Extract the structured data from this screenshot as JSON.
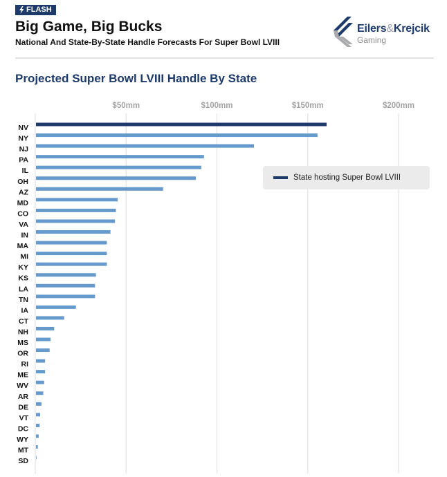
{
  "header": {
    "badge": "FLASH",
    "badge_icon": "lightning-bolt-icon",
    "title": "Big Game, Big Bucks",
    "subtitle": "National And State-By-State Handle Forecasts For Super Bowl LVIII"
  },
  "logo": {
    "name_part1": "Eilers",
    "ampersand": "&",
    "name_part2": "Krejcik",
    "sub": "Gaming"
  },
  "colors": {
    "host": "#1d3a6b",
    "other": "#6699cc",
    "grid": "#e3e3e3",
    "legend_bg": "#ebebeb"
  },
  "chart_data": {
    "type": "bar",
    "orientation": "horizontal",
    "title": "Projected Super Bowl LVIII Handle By State",
    "xlabel": "",
    "ylabel": "",
    "xlim": [
      0,
      210
    ],
    "x_ticks": [
      50,
      100,
      150,
      200
    ],
    "x_tick_labels": [
      "$50mm",
      "$100mm",
      "$150mm",
      "$200mm"
    ],
    "x_axis_position": "top",
    "grid": true,
    "categories": [
      "NV",
      "NY",
      "NJ",
      "PA",
      "IL",
      "OH",
      "AZ",
      "MD",
      "CO",
      "VA",
      "IN",
      "MA",
      "MI",
      "KY",
      "KS",
      "LA",
      "TN",
      "IA",
      "CT",
      "NH",
      "MS",
      "OR",
      "RI",
      "ME",
      "WV",
      "AR",
      "DE",
      "VT",
      "DC",
      "WY",
      "MT",
      "SD"
    ],
    "values": [
      160,
      155,
      120,
      92.5,
      91,
      88,
      70,
      45,
      44,
      43.5,
      41,
      39,
      39,
      39,
      33,
      32.5,
      32.5,
      22,
      15.5,
      10,
      8,
      7.5,
      5,
      5,
      4.5,
      4,
      3,
      2.3,
      2,
      1.5,
      1,
      0.3
    ],
    "highlight": [
      "NV"
    ],
    "legend": {
      "entries": [
        {
          "label": "State hosting Super Bowl LVIII",
          "series": "host"
        }
      ],
      "placement": "right-upper"
    }
  }
}
